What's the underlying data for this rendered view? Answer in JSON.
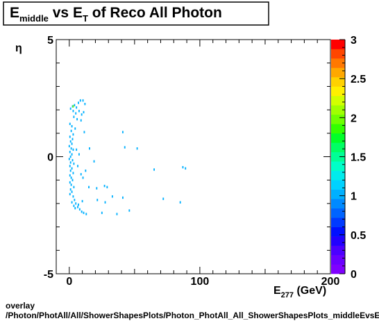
{
  "title": {
    "main1": "E",
    "sub1": "middle",
    "main2": " vs E",
    "sub2": "T",
    "main3": " of Reco All Photon"
  },
  "footer": {
    "line1": "overlay",
    "line2": "/Photon/PhotAll/All/ShowerShapesPlots/Photon_PhotAll_All_ShowerShapesPlots_middleEvsEt"
  },
  "chart_data": {
    "type": "heatmap",
    "xlabel": {
      "main": "E",
      "sub": "277",
      "unit": "  (GeV)"
    },
    "ylabel": "η",
    "xlim": [
      -10,
      200
    ],
    "ylim": [
      -5,
      5
    ],
    "x_ticks": [
      0,
      100,
      200
    ],
    "y_ticks": [
      -5,
      0,
      5
    ],
    "z_range": [
      0,
      3
    ],
    "z_ticks": [
      "0",
      "0.5",
      "1",
      "1.5",
      "2",
      "2.5",
      "3"
    ],
    "palette": [
      "#7f00ff",
      "#6a00ff",
      "#4c00ff",
      "#2200ff",
      "#0010ff",
      "#003aff",
      "#0064ff",
      "#008aff",
      "#00b0ff",
      "#00d2ff",
      "#00ecec",
      "#00ffc8",
      "#00ff96",
      "#00ff64",
      "#00ff28",
      "#32ff00",
      "#6eff00",
      "#a0ff00",
      "#d2ff00",
      "#fff000",
      "#ffd200",
      "#ffa800",
      "#ff7800",
      "#ff4600",
      "#ff0000"
    ],
    "bins": [
      [
        1.0,
        2.05,
        1
      ],
      [
        2.5,
        2.15,
        1
      ],
      [
        4.0,
        2.2,
        1
      ],
      [
        5.5,
        2.1,
        1
      ],
      [
        7.0,
        2.3,
        1
      ],
      [
        8.5,
        2.4,
        1
      ],
      [
        10.5,
        2.4,
        1
      ],
      [
        12.0,
        2.25,
        1
      ],
      [
        3.0,
        1.95,
        1
      ],
      [
        5.0,
        1.85,
        1
      ],
      [
        7.5,
        1.95,
        1
      ],
      [
        9.5,
        1.8,
        1
      ],
      [
        11.0,
        1.9,
        1
      ],
      [
        3.5,
        1.7,
        1
      ],
      [
        6.0,
        1.6,
        1
      ],
      [
        9.0,
        1.55,
        1
      ],
      [
        0.5,
        1.4,
        1
      ],
      [
        2.0,
        1.3,
        1
      ],
      [
        4.5,
        1.2,
        1
      ],
      [
        1.5,
        1.1,
        1
      ],
      [
        3.0,
        0.95,
        1
      ],
      [
        0.5,
        0.85,
        1
      ],
      [
        2.5,
        0.75,
        1
      ],
      [
        11.5,
        1.05,
        1
      ],
      [
        1.0,
        0.65,
        1
      ],
      [
        2.0,
        0.55,
        1
      ],
      [
        0.0,
        0.45,
        1
      ],
      [
        1.5,
        0.35,
        1
      ],
      [
        3.0,
        0.3,
        1
      ],
      [
        0.5,
        0.2,
        1
      ],
      [
        2.0,
        0.1,
        1
      ],
      [
        1.0,
        0.0,
        1
      ],
      [
        0.0,
        -0.1,
        1
      ],
      [
        2.5,
        -0.15,
        1
      ],
      [
        1.0,
        -0.25,
        1
      ],
      [
        3.5,
        -0.3,
        1
      ],
      [
        0.5,
        -0.4,
        1
      ],
      [
        2.0,
        -0.5,
        1
      ],
      [
        1.0,
        -0.6,
        1
      ],
      [
        3.0,
        -0.7,
        1
      ],
      [
        0.5,
        -0.8,
        1
      ],
      [
        1.5,
        -0.9,
        1
      ],
      [
        2.5,
        -1.0,
        1
      ],
      [
        0.5,
        -1.1,
        1
      ],
      [
        1.5,
        -1.2,
        1
      ],
      [
        3.5,
        -1.3,
        1
      ],
      [
        1.0,
        -1.4,
        1
      ],
      [
        2.0,
        -1.5,
        1
      ],
      [
        0.5,
        -1.6,
        1
      ],
      [
        3.0,
        -1.7,
        1
      ],
      [
        4.0,
        -1.85,
        1
      ],
      [
        2.0,
        -1.95,
        1
      ],
      [
        5.0,
        -2.0,
        1
      ],
      [
        3.5,
        -2.1,
        1
      ],
      [
        6.5,
        -2.15,
        1
      ],
      [
        4.5,
        -2.2,
        1
      ],
      [
        8.0,
        -2.25,
        1
      ],
      [
        9.5,
        -2.35,
        1
      ],
      [
        11.0,
        -2.4,
        1
      ],
      [
        13.0,
        -2.45,
        1
      ],
      [
        7.0,
        -2.05,
        1
      ],
      [
        10.0,
        -1.9,
        1
      ],
      [
        5.5,
        0.3,
        1
      ],
      [
        6.5,
        -0.4,
        1
      ],
      [
        7.5,
        0.1,
        1
      ],
      [
        9.0,
        -0.75,
        1
      ],
      [
        10.5,
        -0.9,
        1
      ],
      [
        12.5,
        -0.6,
        1
      ],
      [
        15.5,
        0.35,
        1
      ],
      [
        19.0,
        -0.2,
        1
      ],
      [
        15.0,
        -1.3,
        1
      ],
      [
        21.0,
        -1.35,
        1
      ],
      [
        27.0,
        -1.25,
        1
      ],
      [
        29.0,
        -1.3,
        1
      ],
      [
        21.5,
        -1.85,
        1
      ],
      [
        27.5,
        -1.95,
        1
      ],
      [
        33.0,
        -1.7,
        1
      ],
      [
        36.5,
        -2.45,
        1
      ],
      [
        46.0,
        -2.3,
        1
      ],
      [
        25.0,
        -2.4,
        1
      ],
      [
        41.0,
        -1.75,
        1
      ],
      [
        41.0,
        1.05,
        1
      ],
      [
        42.5,
        0.4,
        1
      ],
      [
        52.0,
        0.35,
        1
      ],
      [
        65.0,
        -0.55,
        1
      ],
      [
        72.0,
        -1.8,
        1
      ],
      [
        85.0,
        -1.95,
        1
      ],
      [
        87.0,
        -0.45,
        1
      ],
      [
        89.0,
        -0.5,
        1
      ],
      [
        3.0,
        2.15,
        2
      ]
    ]
  }
}
